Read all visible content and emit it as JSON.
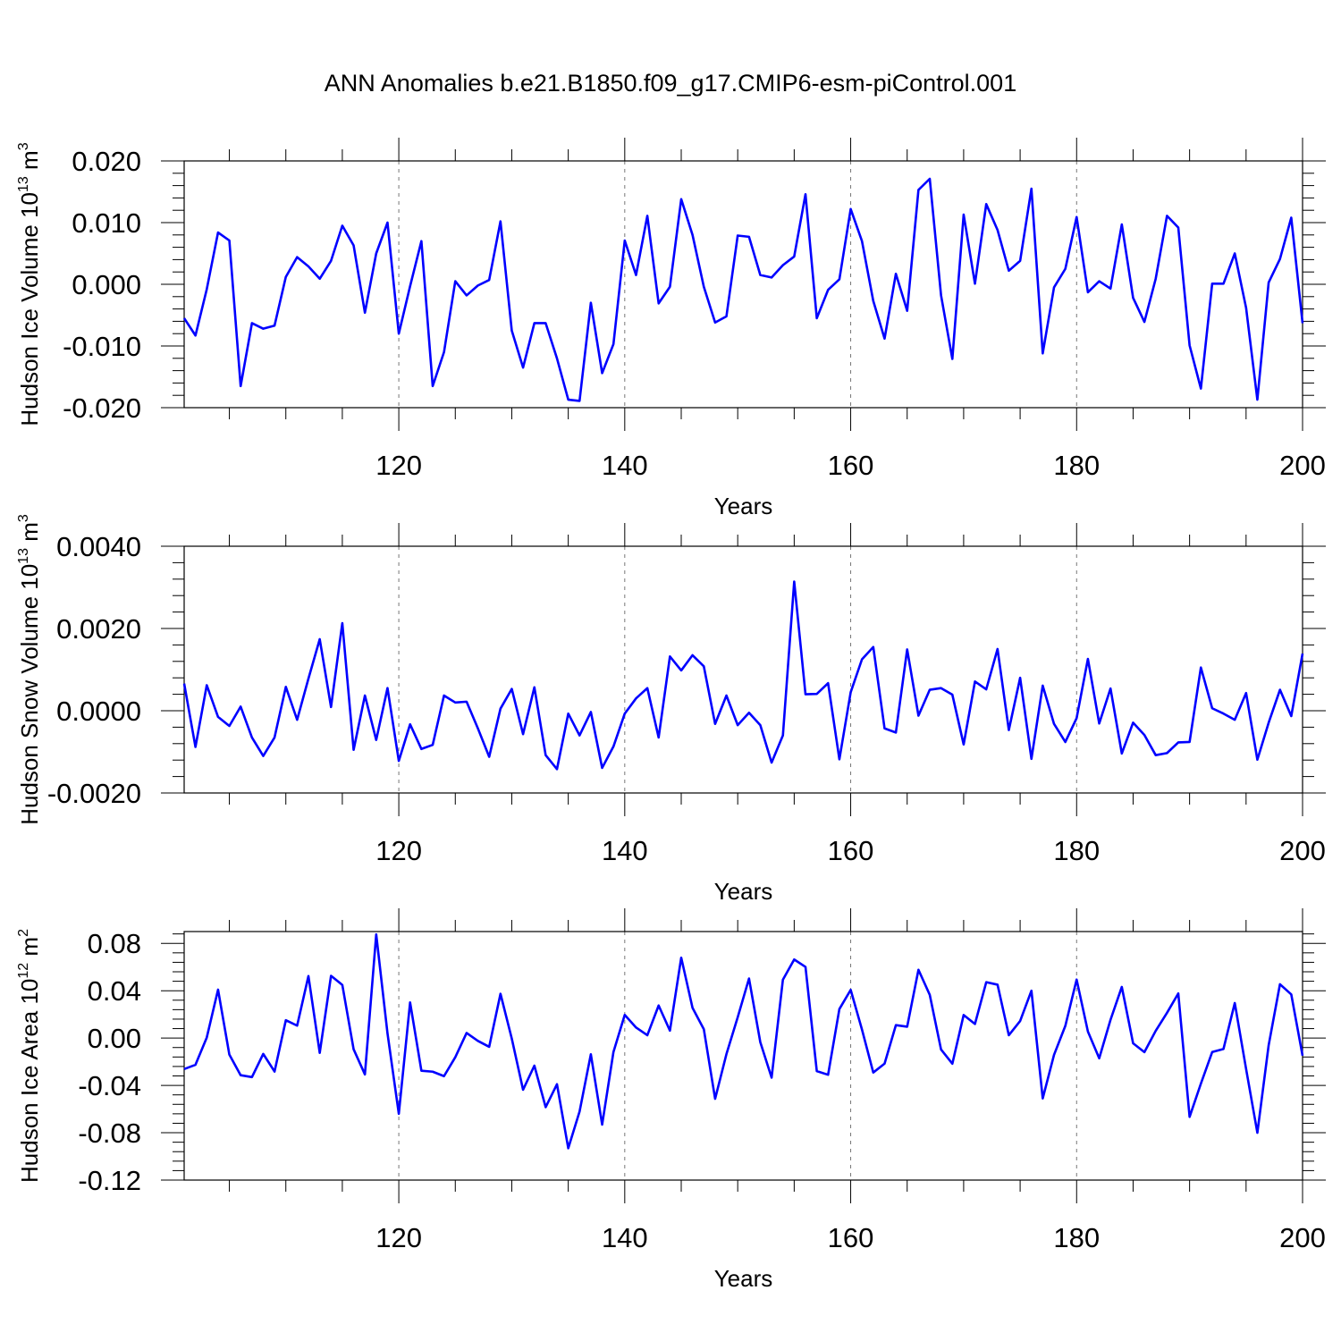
{
  "figure": {
    "title": "ANN Anomalies b.e21.B1850.f09_g17.CMIP6-esm-piControl.001"
  },
  "chart_data": [
    {
      "type": "line",
      "ylabel_main": "Hudson Ice Volume 10",
      "ylabel_exp": "13",
      "ylabel_unit": "m",
      "ylabel_unit_exp": "3",
      "xlabel": "Years",
      "xlim": [
        101,
        200
      ],
      "ylim": [
        -0.02,
        0.02
      ],
      "xticks": [
        120,
        140,
        160,
        180,
        200
      ],
      "xtick_labels": [
        "120",
        "140",
        "160",
        "180",
        "200"
      ],
      "yticks": [
        -0.02,
        -0.01,
        0.0,
        0.01,
        0.02
      ],
      "ytick_labels": [
        "-0.020",
        "-0.010",
        "0.000",
        "0.010",
        "0.020"
      ],
      "grid_x": true,
      "series_color": "#0000ff",
      "x_start": 101,
      "values": [
        -0.0055,
        -0.0083,
        -0.0008,
        0.0084,
        0.0071,
        -0.0165,
        -0.0063,
        -0.0072,
        -0.0067,
        0.0012,
        0.0044,
        0.0029,
        0.0009,
        0.0038,
        0.0095,
        0.0063,
        -0.0046,
        0.005,
        0.01,
        -0.008,
        -0.0003,
        0.007,
        -0.0165,
        -0.011,
        0.0005,
        -0.0018,
        -0.0002,
        0.0007,
        0.0102,
        -0.0075,
        -0.0135,
        -0.0063,
        -0.0063,
        -0.012,
        -0.0187,
        -0.0189,
        -0.003,
        -0.0144,
        -0.0097,
        0.0071,
        0.0015,
        0.0111,
        -0.0031,
        -0.0004,
        0.0138,
        0.008,
        -0.0004,
        -0.0062,
        -0.0052,
        0.0079,
        0.0077,
        0.0015,
        0.0011,
        0.0031,
        0.0045,
        0.0146,
        -0.0055,
        -0.0009,
        0.0008,
        0.0122,
        0.007,
        -0.0027,
        -0.0088,
        0.0017,
        -0.0043,
        0.0153,
        0.0171,
        -0.0018,
        -0.0121,
        0.0113,
        0.0001,
        0.013,
        0.0088,
        0.0022,
        0.0038,
        0.0155,
        -0.0112,
        -0.0005,
        0.0025,
        0.0109,
        -0.0013,
        0.0005,
        -0.0007,
        0.0097,
        -0.0022,
        -0.0061,
        0.0009,
        0.0111,
        0.0092,
        -0.0099,
        -0.0169,
        0.0001,
        0.0001,
        0.005,
        -0.0038,
        -0.0187,
        0.0003,
        0.0041,
        0.0108,
        -0.0063
      ]
    },
    {
      "type": "line",
      "ylabel_main": "Hudson Snow Volume 10",
      "ylabel_exp": "13",
      "ylabel_unit": "m",
      "ylabel_unit_exp": "3",
      "xlabel": "Years",
      "xlim": [
        101,
        200
      ],
      "ylim": [
        -0.002,
        0.004
      ],
      "xticks": [
        120,
        140,
        160,
        180,
        200
      ],
      "xtick_labels": [
        "120",
        "140",
        "160",
        "180",
        "200"
      ],
      "yticks": [
        -0.002,
        0.0,
        0.002,
        0.004
      ],
      "ytick_labels": [
        "-0.0020",
        "0.0000",
        "0.0020",
        "0.0040"
      ],
      "grid_x": true,
      "series_color": "#0000ff",
      "x_start": 101,
      "values": [
        0.00066,
        -0.00088,
        0.00062,
        -0.00015,
        -0.00037,
        0.0001,
        -0.00065,
        -0.0011,
        -0.00065,
        0.00058,
        -0.00022,
        0.00078,
        0.00174,
        9e-05,
        0.00213,
        -0.00095,
        0.00037,
        -0.00071,
        0.00055,
        -0.00122,
        -0.00033,
        -0.00093,
        -0.00083,
        0.00037,
        0.0002,
        0.00022,
        -0.00043,
        -0.00112,
        5e-05,
        0.00053,
        -0.00057,
        0.00057,
        -0.00108,
        -0.00142,
        -7e-05,
        -0.0006,
        -3e-05,
        -0.00139,
        -0.00087,
        -7e-05,
        0.0003,
        0.00055,
        -0.00065,
        0.00132,
        0.00098,
        0.00135,
        0.00108,
        -0.00032,
        0.00037,
        -0.00035,
        -5e-05,
        -0.00035,
        -0.00126,
        -0.0006,
        0.00314,
        0.0004,
        0.00041,
        0.00067,
        -0.00118,
        0.00045,
        0.00125,
        0.00155,
        -0.00043,
        -0.00053,
        0.00149,
        -0.00012,
        0.00051,
        0.00055,
        0.00039,
        -0.00082,
        0.00071,
        0.00052,
        0.0015,
        -0.00047,
        0.0008,
        -0.00117,
        0.00061,
        -0.00032,
        -0.00076,
        -0.00018,
        0.00126,
        -0.00031,
        0.00054,
        -0.00104,
        -0.00029,
        -0.00059,
        -0.00108,
        -0.00103,
        -0.00077,
        -0.00076,
        0.00105,
        6e-05,
        -7e-05,
        -0.00022,
        0.00043,
        -0.00119,
        -0.00029,
        0.00051,
        -0.00013,
        0.00139
      ]
    },
    {
      "type": "line",
      "ylabel_main": "Hudson Ice Area 10",
      "ylabel_exp": "12",
      "ylabel_unit": "m",
      "ylabel_unit_exp": "2",
      "xlabel": "Years",
      "xlim": [
        101,
        200
      ],
      "ylim": [
        -0.12,
        0.09
      ],
      "xticks": [
        120,
        140,
        160,
        180,
        200
      ],
      "xtick_labels": [
        "120",
        "140",
        "160",
        "180",
        "200"
      ],
      "yticks": [
        -0.12,
        -0.08,
        -0.04,
        0.0,
        0.04,
        0.08
      ],
      "ytick_labels": [
        "-0.12",
        "-0.08",
        "-0.04",
        "0.00",
        "0.04",
        "0.08"
      ],
      "grid_x": true,
      "series_color": "#0000ff",
      "x_start": 101,
      "values": [
        -0.0262,
        -0.0226,
        0.0004,
        0.0409,
        -0.014,
        -0.0314,
        -0.033,
        -0.0134,
        -0.0283,
        0.0151,
        0.0105,
        0.0524,
        -0.0125,
        0.0526,
        0.0449,
        -0.0095,
        -0.0307,
        0.0876,
        0.0039,
        -0.064,
        0.0301,
        -0.0276,
        -0.0284,
        -0.0322,
        -0.0162,
        0.0043,
        -0.0024,
        -0.0074,
        0.0374,
        -0.0004,
        -0.0437,
        -0.0233,
        -0.0584,
        -0.039,
        -0.0931,
        -0.0621,
        -0.0137,
        -0.0731,
        -0.0118,
        0.0196,
        0.0089,
        0.0024,
        0.0275,
        0.0063,
        0.0679,
        0.0255,
        0.0075,
        -0.0513,
        -0.0136,
        0.0176,
        0.0503,
        -0.0035,
        -0.0334,
        0.0493,
        0.0664,
        0.0601,
        -0.0279,
        -0.031,
        0.0245,
        0.0407,
        0.0072,
        -0.0291,
        -0.0216,
        0.0109,
        0.0096,
        0.0577,
        0.0365,
        -0.0097,
        -0.0217,
        0.0195,
        0.0119,
        0.0472,
        0.0451,
        0.0024,
        0.0144,
        0.04,
        -0.051,
        -0.0142,
        0.0103,
        0.0494,
        0.0055,
        -0.0171,
        0.0154,
        0.0432,
        -0.0044,
        -0.0119,
        0.0061,
        0.0213,
        0.0377,
        -0.0666,
        -0.0385,
        -0.0118,
        -0.0092,
        0.0296,
        -0.026,
        -0.08,
        -0.006,
        0.0455,
        0.0369,
        -0.0149
      ]
    }
  ]
}
